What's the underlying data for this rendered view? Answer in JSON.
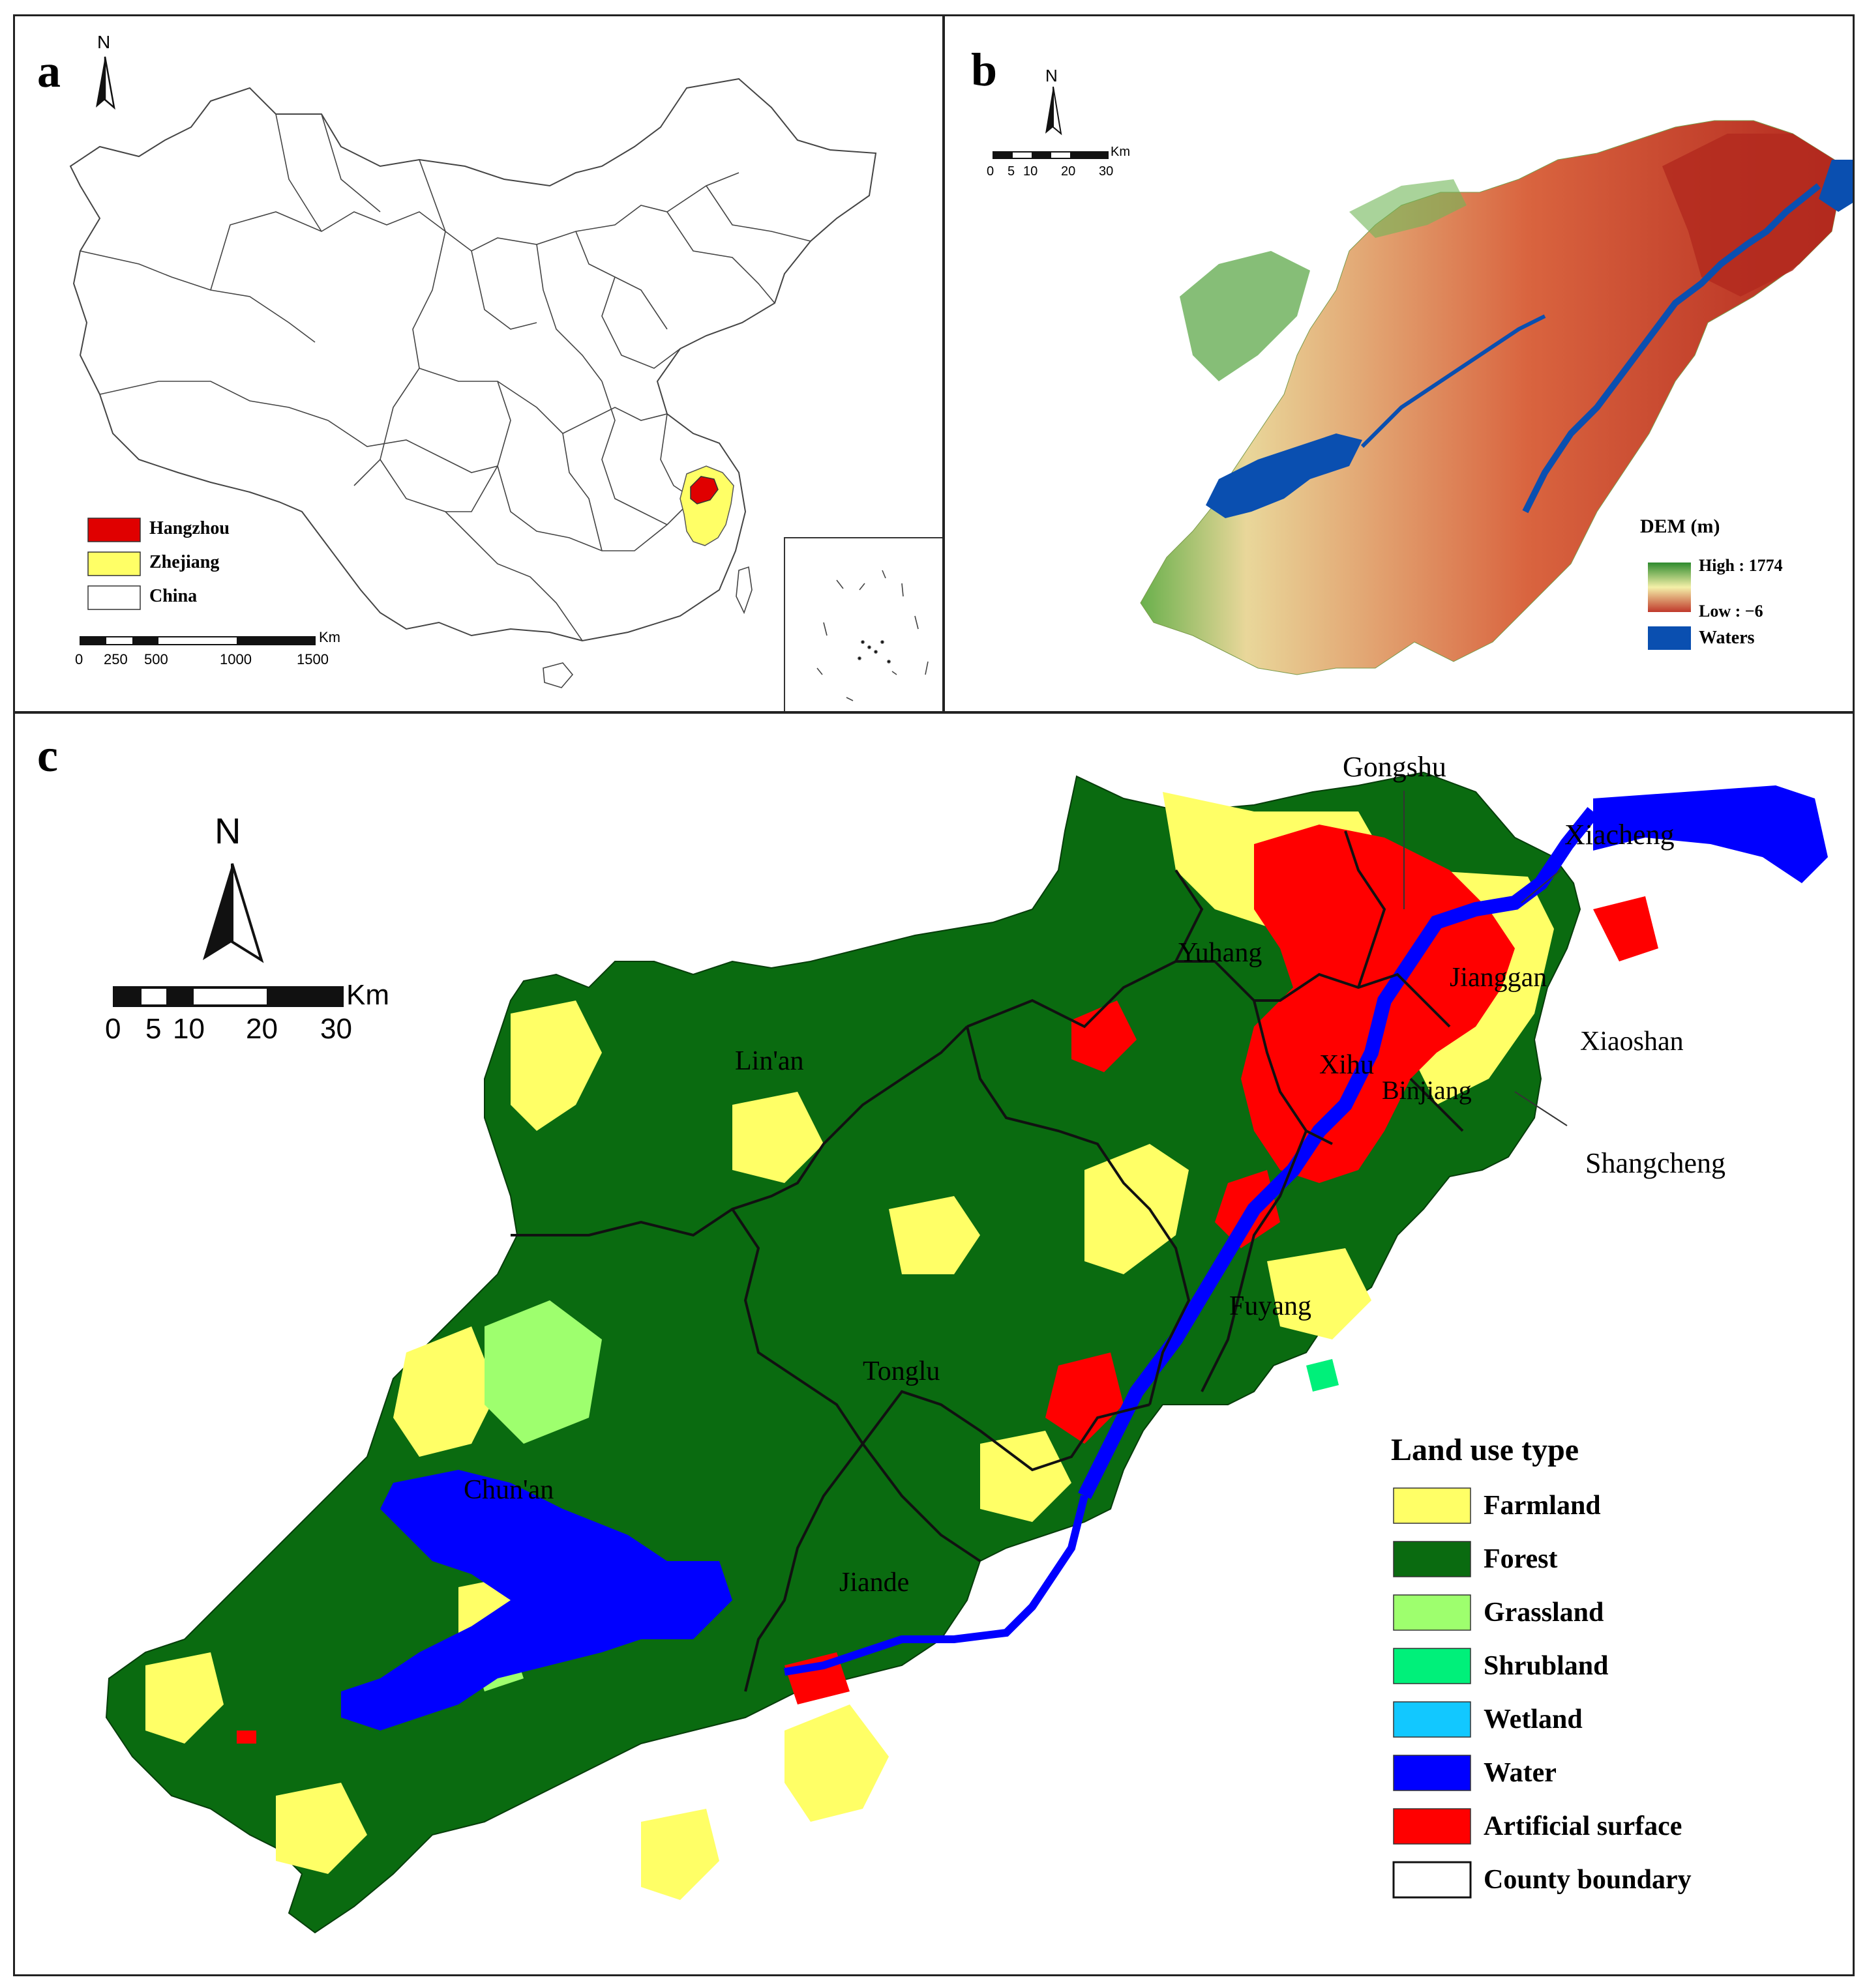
{
  "panels": {
    "a": {
      "label": "a",
      "north": "N",
      "legend": [
        {
          "label": "Hangzhou",
          "color": "#e00000"
        },
        {
          "label": "Zhejiang",
          "color": "#ffff66"
        },
        {
          "label": "China",
          "color": "#ffffff"
        }
      ],
      "scale": {
        "unit": "Km",
        "ticks": [
          "0",
          "250",
          "500",
          "1000",
          "1500"
        ]
      }
    },
    "b": {
      "label": "b",
      "north": "N",
      "scale": {
        "unit": "Km",
        "ticks": [
          "0",
          "5",
          "10",
          "20",
          "30"
        ]
      },
      "legend": {
        "title": "DEM (m)",
        "high": "High : 1774",
        "low": "Low : −6",
        "waters": "Waters",
        "colors": {
          "high": "#2e8b2e",
          "mid": "#f4f0a8",
          "low": "#c0392b",
          "waters": "#0a4fb0"
        }
      }
    },
    "c": {
      "label": "c",
      "north": "N",
      "scale": {
        "unit": "Km",
        "ticks": [
          "0",
          "5",
          "10",
          "20",
          "30"
        ]
      },
      "districts": [
        "Gongshu",
        "Xiacheng",
        "Yuhang",
        "Jianggan",
        "Lin'an",
        "Xihu",
        "Xiaoshan",
        "Binjiang",
        "Shangcheng",
        "Fuyang",
        "Tonglu",
        "Chun'an",
        "Jiande"
      ],
      "legend": {
        "title": "Land use type",
        "items": [
          {
            "label": "Farmland",
            "color": "#ffff66"
          },
          {
            "label": "Forest",
            "color": "#0a6b10"
          },
          {
            "label": "Grassland",
            "color": "#9eff6e"
          },
          {
            "label": "Shrubland",
            "color": "#00f07a"
          },
          {
            "label": "Wetland",
            "color": "#12c8ff"
          },
          {
            "label": "Water",
            "color": "#0000ff"
          },
          {
            "label": "Artificial surface",
            "color": "#ff0000"
          },
          {
            "label": "County boundary",
            "color": "#ffffff"
          }
        ]
      }
    }
  }
}
